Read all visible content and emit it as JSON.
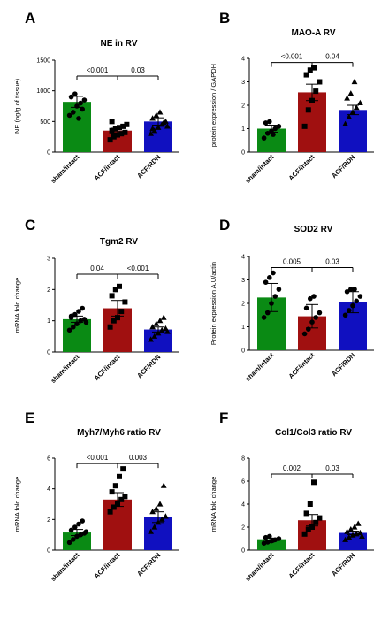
{
  "colors": {
    "sham": "#0a8a14",
    "acf": "#a01010",
    "rdn": "#1010c0",
    "axis": "#000000"
  },
  "chart_data": [
    {
      "panel": "A",
      "type": "bar",
      "title": "NE in RV",
      "ylabel": "NE (ng/g of tissue)",
      "ylim": [
        0,
        1500
      ],
      "yticks": [
        "0",
        "500",
        "1000",
        "1500"
      ],
      "categories": [
        "sham/intact",
        "ACF/intact",
        "ACF/RDN"
      ],
      "values": [
        820,
        350,
        500
      ],
      "errors": [
        90,
        40,
        60
      ],
      "points": [
        [
          600,
          650,
          750,
          800,
          850,
          900,
          950,
          550,
          700
        ],
        [
          200,
          250,
          280,
          300,
          320,
          350,
          380,
          400,
          420,
          450,
          500
        ],
        [
          300,
          350,
          400,
          450,
          500,
          550,
          600,
          650,
          480,
          420,
          380
        ]
      ],
      "markers": [
        "circle",
        "square",
        "triangle"
      ],
      "comparisons": [
        {
          "from": 0,
          "to": 1,
          "label": "<0.001"
        },
        {
          "from": 1,
          "to": 2,
          "label": "0.03"
        }
      ]
    },
    {
      "panel": "B",
      "type": "bar",
      "title": "MAO-A RV",
      "ylabel": "protein expression / GAPDH",
      "ylim": [
        0,
        4
      ],
      "yticks": [
        "0",
        "1",
        "2",
        "3",
        "4"
      ],
      "categories": [
        "sham/intact",
        "ACF/intact",
        "ACF/RDN"
      ],
      "values": [
        1.0,
        2.55,
        1.8
      ],
      "errors": [
        0.15,
        0.35,
        0.2
      ],
      "points": [
        [
          0.6,
          0.8,
          0.9,
          1.0,
          1.1,
          1.25,
          1.3,
          0.75
        ],
        [
          1.1,
          1.8,
          2.2,
          2.6,
          3.0,
          3.3,
          3.5,
          3.6
        ],
        [
          1.2,
          1.5,
          1.7,
          1.9,
          2.1,
          2.3,
          2.5,
          3.0
        ]
      ],
      "markers": [
        "circle",
        "square",
        "triangle"
      ],
      "comparisons": [
        {
          "from": 0,
          "to": 1,
          "label": "<0.001"
        },
        {
          "from": 1,
          "to": 2,
          "label": "0.04"
        }
      ]
    },
    {
      "panel": "C",
      "type": "bar",
      "title": "Tgm2 RV",
      "ylabel": "mRNA fold change",
      "ylim": [
        0,
        3
      ],
      "yticks": [
        "0",
        "1",
        "2",
        "3"
      ],
      "categories": [
        "sham/intact",
        "ACF/intact",
        "ACF/RDN"
      ],
      "values": [
        1.05,
        1.4,
        0.72
      ],
      "errors": [
        0.1,
        0.25,
        0.08
      ],
      "points": [
        [
          0.7,
          0.8,
          0.9,
          1.0,
          1.05,
          1.1,
          1.2,
          1.3,
          1.4,
          0.95,
          1.15
        ],
        [
          0.8,
          1.0,
          1.1,
          1.3,
          1.6,
          1.8,
          2.0,
          2.1
        ],
        [
          0.4,
          0.5,
          0.6,
          0.7,
          0.75,
          0.8,
          0.9,
          1.0,
          1.1,
          0.65
        ]
      ],
      "markers": [
        "circle",
        "square",
        "triangle"
      ],
      "comparisons": [
        {
          "from": 0,
          "to": 1,
          "label": "0.04"
        },
        {
          "from": 1,
          "to": 2,
          "label": "<0.001"
        }
      ]
    },
    {
      "panel": "D",
      "type": "bar",
      "title": "SOD2  RV",
      "ylabel": "Protein expression A.U/actin",
      "ylim": [
        0,
        4
      ],
      "yticks": [
        "0",
        "1",
        "2",
        "3",
        "4"
      ],
      "categories": [
        "sham/intact",
        "ACF/intact",
        "ACF/RDN"
      ],
      "values": [
        2.25,
        1.45,
        2.05
      ],
      "errors": [
        0.6,
        0.5,
        0.45
      ],
      "points": [
        [
          1.4,
          1.6,
          2.0,
          2.3,
          2.6,
          2.9,
          3.1,
          3.3
        ],
        [
          0.7,
          0.9,
          1.2,
          1.4,
          1.6,
          1.8,
          2.2,
          2.3
        ],
        [
          1.5,
          1.7,
          1.9,
          2.1,
          2.3,
          2.5,
          2.6,
          2.6
        ]
      ],
      "markers": [
        "circle",
        "circle",
        "circle"
      ],
      "comparisons": [
        {
          "from": 0,
          "to": 1,
          "label": "0.005"
        },
        {
          "from": 1,
          "to": 2,
          "label": "0.03"
        }
      ]
    },
    {
      "panel": "E",
      "type": "bar",
      "title": "Myh7/Myh6 ratio RV",
      "ylabel": "mRNA fold change",
      "ylim": [
        0,
        6
      ],
      "yticks": [
        "0",
        "2",
        "4",
        "6"
      ],
      "categories": [
        "sham/intact",
        "ACF/intact",
        "ACF/RDN"
      ],
      "values": [
        1.15,
        3.3,
        2.15
      ],
      "errors": [
        0.2,
        0.45,
        0.35
      ],
      "points": [
        [
          0.5,
          0.7,
          0.9,
          1.0,
          1.1,
          1.3,
          1.5,
          1.7,
          1.9,
          1.2
        ],
        [
          2.5,
          2.8,
          3.0,
          3.3,
          3.5,
          3.8,
          4.2,
          4.8,
          5.3
        ],
        [
          1.2,
          1.5,
          1.8,
          2.0,
          2.2,
          2.5,
          2.7,
          3.0,
          4.2
        ]
      ],
      "markers": [
        "circle",
        "square",
        "triangle"
      ],
      "comparisons": [
        {
          "from": 0,
          "to": 1,
          "label": "<0.001"
        },
        {
          "from": 1,
          "to": 2,
          "label": "0.003"
        }
      ]
    },
    {
      "panel": "F",
      "type": "bar",
      "title": "Col1/Col3 ratio RV",
      "ylabel": "mRNA fold change",
      "ylim": [
        0,
        8
      ],
      "yticks": [
        "0",
        "2",
        "4",
        "6",
        "8"
      ],
      "categories": [
        "sham/intact",
        "ACF/intact",
        "ACF/RDN"
      ],
      "values": [
        0.95,
        2.6,
        1.5
      ],
      "errors": [
        0.1,
        0.5,
        0.15
      ],
      "points": [
        [
          0.6,
          0.7,
          0.8,
          0.9,
          1.0,
          1.1,
          1.2,
          0.85
        ],
        [
          1.4,
          1.8,
          2.0,
          2.4,
          2.8,
          3.2,
          4.0,
          5.9
        ],
        [
          0.9,
          1.1,
          1.3,
          1.4,
          1.5,
          1.6,
          1.8,
          2.0,
          2.3,
          1.2
        ]
      ],
      "markers": [
        "circle",
        "square",
        "triangle"
      ],
      "comparisons": [
        {
          "from": 0,
          "to": 1,
          "label": "0.002"
        },
        {
          "from": 1,
          "to": 2,
          "label": "0.03"
        }
      ]
    }
  ]
}
